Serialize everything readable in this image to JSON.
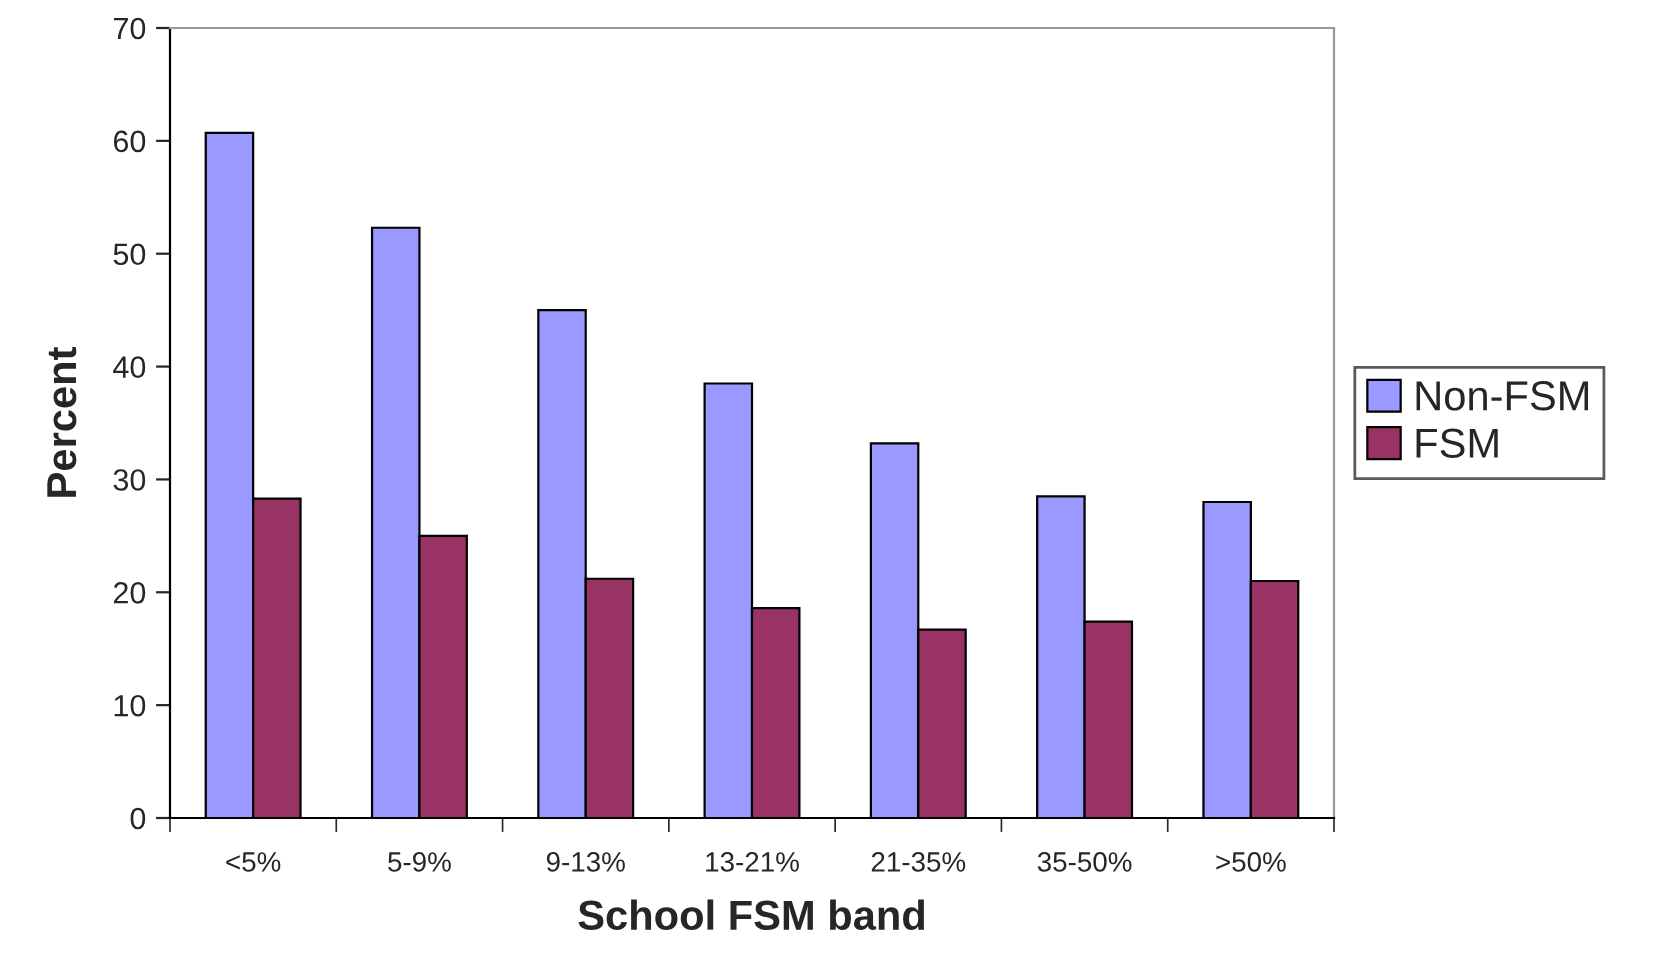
{
  "chart_data": {
    "type": "bar",
    "xlabel": "School FSM band",
    "ylabel": "Percent",
    "categories": [
      "<5%",
      "5-9%",
      "9-13%",
      "13-21%",
      "21-35%",
      "35-50%",
      ">50%"
    ],
    "series": [
      {
        "name": "Non-FSM",
        "color": "#9999ff",
        "values": [
          60.7,
          52.3,
          45.0,
          38.5,
          33.2,
          28.5,
          28.0
        ]
      },
      {
        "name": "FSM",
        "color": "#993366",
        "values": [
          28.3,
          25.0,
          21.2,
          18.6,
          16.7,
          17.4,
          21.0
        ]
      }
    ],
    "ylim": [
      0,
      70
    ],
    "yticks": [
      0,
      10,
      20,
      30,
      40,
      50,
      60,
      70
    ],
    "grid": false,
    "legend": "right"
  }
}
